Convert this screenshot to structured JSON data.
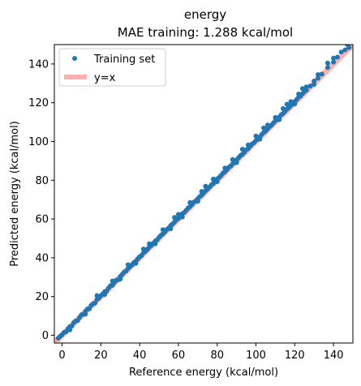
{
  "chart_data": {
    "type": "scatter",
    "title": "energy",
    "subtitle": "MAE training: 1.288 kcal/mol",
    "xlabel": "Reference energy (kcal/mol)",
    "ylabel": "Predicted energy (kcal/mol)",
    "xlim": [
      -4,
      150
    ],
    "ylim": [
      -4,
      150
    ],
    "xticks": [
      0,
      20,
      40,
      60,
      80,
      100,
      120,
      140
    ],
    "yticks": [
      0,
      20,
      40,
      60,
      80,
      100,
      120,
      140
    ],
    "grid": false,
    "legend_placement": "upper-left",
    "series": [
      {
        "name": "Training set",
        "kind": "scatter",
        "color": "#1f77b4",
        "description": "dense scatter of training points lying close to y=x from about -2 to 148 kcal/mol",
        "points": [
          [
            -2,
            -1.5
          ],
          [
            -1,
            -0.5
          ],
          [
            0,
            0.3
          ],
          [
            1,
            1.5
          ],
          [
            2,
            1.8
          ],
          [
            3,
            3.4
          ],
          [
            4,
            4.5
          ],
          [
            5,
            4.8
          ],
          [
            6,
            6.5
          ],
          [
            7,
            7.4
          ],
          [
            8,
            7.6
          ],
          [
            9,
            9.2
          ],
          [
            10,
            10.6
          ],
          [
            11,
            10.8
          ],
          [
            12,
            12.3
          ],
          [
            13,
            13.5
          ],
          [
            14,
            13.6
          ],
          [
            15,
            15.4
          ],
          [
            16,
            16.3
          ],
          [
            17,
            16.6
          ],
          [
            18,
            18.5
          ],
          [
            19,
            19.2
          ],
          [
            20,
            20.4
          ],
          [
            21,
            21.3
          ],
          [
            22,
            22.5
          ],
          [
            23,
            22.8
          ],
          [
            24,
            24.4
          ],
          [
            25,
            25.6
          ],
          [
            26,
            25.8
          ],
          [
            27,
            27.4
          ],
          [
            28,
            28.5
          ],
          [
            29,
            28.7
          ],
          [
            30,
            30.3
          ],
          [
            31,
            31.4
          ],
          [
            32,
            32.6
          ],
          [
            33,
            33.2
          ],
          [
            34,
            34.5
          ],
          [
            35,
            35.4
          ],
          [
            36,
            36.3
          ],
          [
            37,
            37.5
          ],
          [
            38,
            38.2
          ],
          [
            39,
            39.4
          ],
          [
            40,
            40.5
          ],
          [
            41,
            41.2
          ],
          [
            42,
            42.6
          ],
          [
            43,
            43.3
          ],
          [
            44,
            44.4
          ],
          [
            45,
            45.6
          ],
          [
            46,
            46.3
          ],
          [
            47,
            47.4
          ],
          [
            48,
            48.6
          ],
          [
            49,
            49.2
          ],
          [
            50,
            50.5
          ],
          [
            51,
            51.6
          ],
          [
            52,
            52.3
          ],
          [
            53,
            53.4
          ],
          [
            54,
            54.6
          ],
          [
            55,
            55.3
          ],
          [
            56,
            56.7
          ],
          [
            57,
            57.4
          ],
          [
            58,
            58.5
          ],
          [
            59,
            59.6
          ],
          [
            60,
            60.3
          ],
          [
            61,
            61.4
          ],
          [
            62,
            62.7
          ],
          [
            63,
            63.4
          ],
          [
            64,
            64.5
          ],
          [
            65,
            65.6
          ],
          [
            66,
            66.4
          ],
          [
            67,
            67.5
          ],
          [
            68,
            68.7
          ],
          [
            69,
            69.4
          ],
          [
            70,
            70.5
          ],
          [
            71,
            71.6
          ],
          [
            72,
            72.3
          ],
          [
            73,
            73.5
          ],
          [
            74,
            74.6
          ],
          [
            75,
            75.4
          ],
          [
            76,
            76.5
          ],
          [
            77,
            77.6
          ],
          [
            78,
            78.4
          ],
          [
            79,
            79.5
          ],
          [
            80,
            80.7
          ],
          [
            81,
            81.4
          ],
          [
            82,
            82.5
          ],
          [
            83,
            83.7
          ],
          [
            84,
            84.4
          ],
          [
            85,
            85.5
          ],
          [
            86,
            86.7
          ],
          [
            87,
            87.4
          ],
          [
            88,
            88.5
          ],
          [
            89,
            89.6
          ],
          [
            90,
            90.4
          ],
          [
            91,
            91.6
          ],
          [
            92,
            92.7
          ],
          [
            93,
            93.4
          ],
          [
            94,
            94.5
          ],
          [
            95,
            95.7
          ],
          [
            96,
            96.4
          ],
          [
            97,
            97.6
          ],
          [
            98,
            98.7
          ],
          [
            99,
            99.4
          ],
          [
            100,
            100.5
          ],
          [
            101,
            101.7
          ],
          [
            102,
            102.4
          ],
          [
            103,
            103.6
          ],
          [
            104,
            104.7
          ],
          [
            105,
            105.4
          ],
          [
            106,
            106.6
          ],
          [
            107,
            107.7
          ],
          [
            108,
            108.4
          ],
          [
            109,
            109.6
          ],
          [
            110,
            110.7
          ],
          [
            111,
            111.5
          ],
          [
            112,
            112.6
          ],
          [
            113,
            113.8
          ],
          [
            114,
            114.5
          ],
          [
            115,
            115.6
          ],
          [
            116,
            116.7
          ],
          [
            117,
            117.5
          ],
          [
            118,
            118.6
          ],
          [
            119,
            119.8
          ],
          [
            120,
            120.5
          ],
          [
            121,
            121.7
          ],
          [
            122,
            122.8
          ],
          [
            123,
            123.5
          ],
          [
            124,
            124.7
          ],
          [
            125,
            125.8
          ],
          [
            126,
            126.5
          ],
          [
            128,
            128.6
          ],
          [
            130,
            131.2
          ],
          [
            132,
            132.7
          ],
          [
            134,
            134.8
          ],
          [
            137,
            138.2
          ],
          [
            140,
            141.0
          ],
          [
            142,
            143.5
          ],
          [
            144,
            146.2
          ],
          [
            146,
            147.3
          ],
          [
            148,
            148.5
          ],
          [
            18,
            20.5
          ],
          [
            26,
            28.0
          ],
          [
            34,
            36.4
          ],
          [
            45,
            47.2
          ],
          [
            52,
            54.5
          ],
          [
            60,
            62.4
          ],
          [
            66,
            68.5
          ],
          [
            72,
            74.2
          ],
          [
            78,
            80.6
          ],
          [
            84,
            86.3
          ],
          [
            88,
            90.7
          ],
          [
            96,
            98.2
          ],
          [
            100,
            102.8
          ],
          [
            106,
            108.5
          ],
          [
            110,
            112.4
          ],
          [
            114,
            117.0
          ],
          [
            118,
            120.6
          ],
          [
            122,
            124.5
          ],
          [
            126,
            128.2
          ],
          [
            132,
            134.5
          ],
          [
            137,
            140.5
          ],
          [
            140,
            143.0
          ],
          [
            4,
            2.8
          ],
          [
            12,
            10.9
          ],
          [
            22,
            21.0
          ],
          [
            30,
            29.0
          ],
          [
            38,
            37.1
          ],
          [
            48,
            47.2
          ],
          [
            56,
            55.0
          ],
          [
            62,
            61.0
          ],
          [
            70,
            69.2
          ],
          [
            80,
            79.3
          ],
          [
            90,
            89.1
          ],
          [
            102,
            101.2
          ],
          [
            112,
            111.3
          ],
          [
            120,
            119.4
          ],
          [
            130,
            129.5
          ],
          [
            42,
            44.5
          ],
          [
            58,
            60.8
          ],
          [
            74,
            76.9
          ],
          [
            93,
            96.0
          ],
          [
            104,
            107.0
          ],
          [
            116,
            119.2
          ],
          [
            124,
            127.3
          ],
          [
            147,
            150.2
          ]
        ]
      },
      {
        "name": "y=x",
        "kind": "line",
        "color": "#ffb0b0",
        "points": [
          [
            -4,
            -4
          ],
          [
            150,
            150
          ]
        ]
      }
    ]
  }
}
